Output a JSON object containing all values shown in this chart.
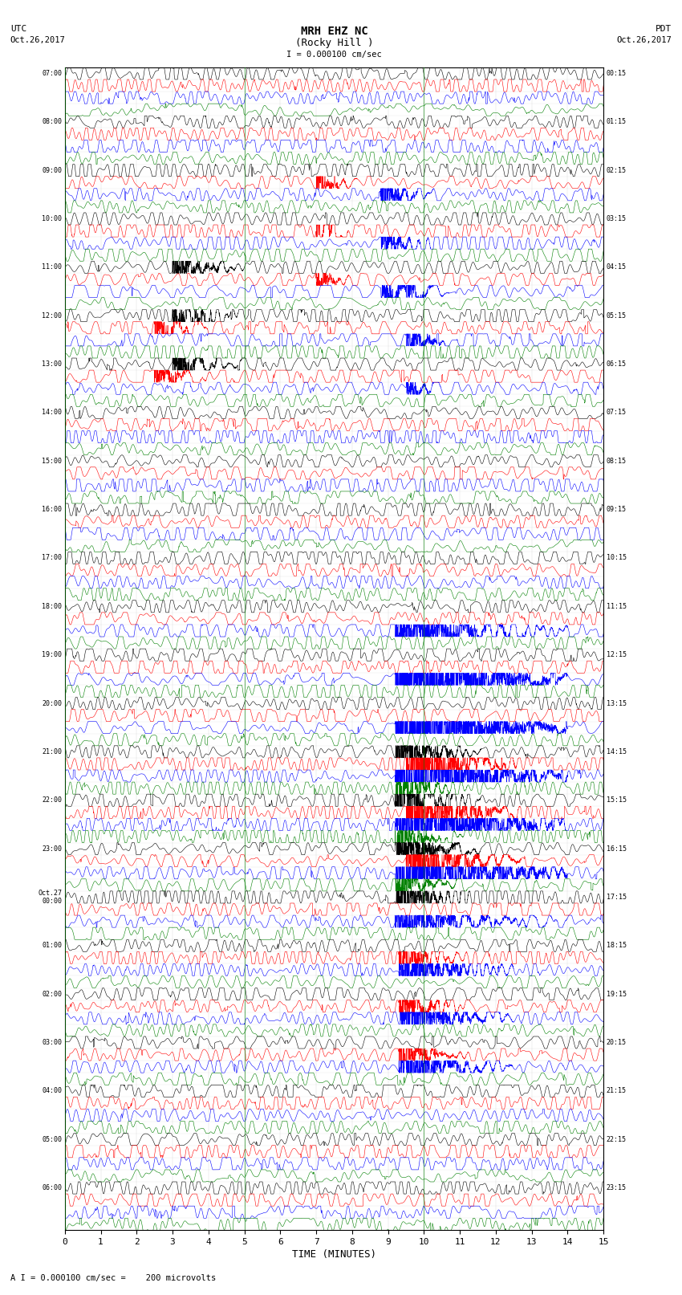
{
  "title_line1": "MRH EHZ NC",
  "title_line2": "(Rocky Hill )",
  "scale_label": "I = 0.000100 cm/sec",
  "utc_label": "UTC",
  "pdt_label": "PDT",
  "date_left": "Oct.26,2017",
  "date_right": "Oct.26,2017",
  "xlabel": "TIME (MINUTES)",
  "footer": "A I = 0.000100 cm/sec =    200 microvolts",
  "xlim": [
    0,
    15
  ],
  "xticks": [
    0,
    1,
    2,
    3,
    4,
    5,
    6,
    7,
    8,
    9,
    10,
    11,
    12,
    13,
    14,
    15
  ],
  "colors": [
    "black",
    "red",
    "blue",
    "green"
  ],
  "num_rows": 96,
  "background": "#ffffff",
  "left_times": [
    "07:00",
    "",
    "",
    "",
    "08:00",
    "",
    "",
    "",
    "09:00",
    "",
    "",
    "",
    "10:00",
    "",
    "",
    "",
    "11:00",
    "",
    "",
    "",
    "12:00",
    "",
    "",
    "",
    "13:00",
    "",
    "",
    "",
    "14:00",
    "",
    "",
    "",
    "15:00",
    "",
    "",
    "",
    "16:00",
    "",
    "",
    "",
    "17:00",
    "",
    "",
    "",
    "18:00",
    "",
    "",
    "",
    "19:00",
    "",
    "",
    "",
    "20:00",
    "",
    "",
    "",
    "21:00",
    "",
    "",
    "",
    "22:00",
    "",
    "",
    "",
    "23:00",
    "",
    "",
    "",
    "Oct.27\n00:00",
    "",
    "",
    "",
    "01:00",
    "",
    "",
    "",
    "02:00",
    "",
    "",
    "",
    "03:00",
    "",
    "",
    "",
    "04:00",
    "",
    "",
    "",
    "05:00",
    "",
    "",
    "",
    "06:00",
    "",
    "",
    ""
  ],
  "right_times": [
    "00:15",
    "",
    "",
    "",
    "01:15",
    "",
    "",
    "",
    "02:15",
    "",
    "",
    "",
    "03:15",
    "",
    "",
    "",
    "04:15",
    "",
    "",
    "",
    "05:15",
    "",
    "",
    "",
    "06:15",
    "",
    "",
    "",
    "07:15",
    "",
    "",
    "",
    "08:15",
    "",
    "",
    "",
    "09:15",
    "",
    "",
    "",
    "10:15",
    "",
    "",
    "",
    "11:15",
    "",
    "",
    "",
    "12:15",
    "",
    "",
    "",
    "13:15",
    "",
    "",
    "",
    "14:15",
    "",
    "",
    "",
    "15:15",
    "",
    "",
    "",
    "16:15",
    "",
    "",
    "",
    "17:15",
    "",
    "",
    "",
    "18:15",
    "",
    "",
    "",
    "19:15",
    "",
    "",
    "",
    "20:15",
    "",
    "",
    "",
    "21:15",
    "",
    "",
    "",
    "22:15",
    "",
    "",
    "",
    "23:15",
    "",
    "",
    ""
  ]
}
